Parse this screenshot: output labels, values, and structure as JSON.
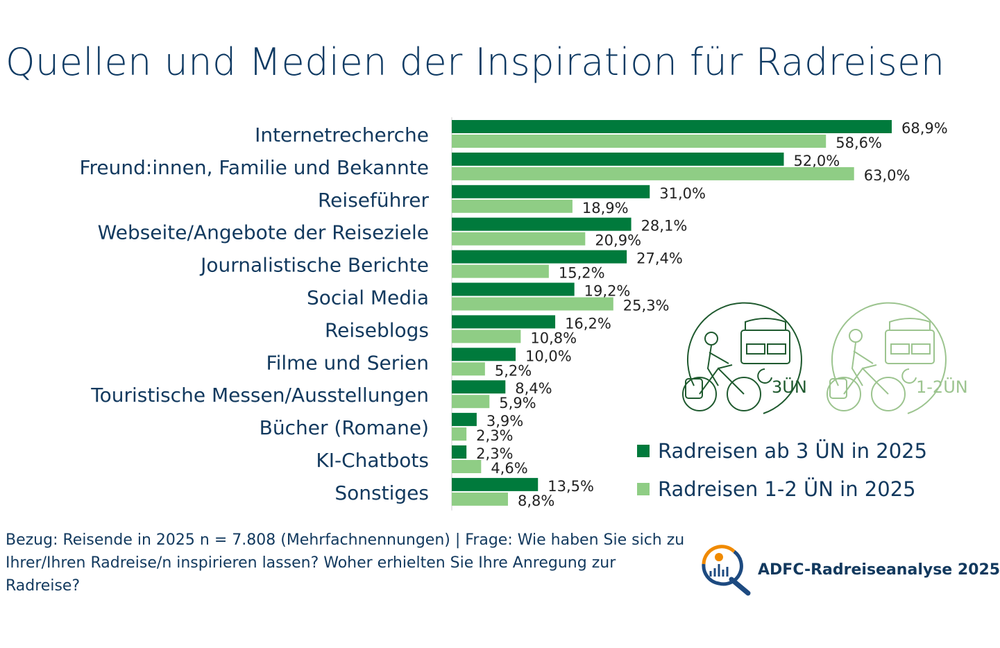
{
  "chart_data": {
    "type": "bar",
    "orientation": "horizontal",
    "title": "Quellen und Medien der Inspiration für Radreisen",
    "categories": [
      "Internetrecherche",
      "Freund:innen, Familie und Bekannte",
      "Reiseführer",
      "Webseite/Angebote der Reiseziele",
      "Journalistische Berichte",
      "Social Media",
      "Reiseblogs",
      "Filme und Serien",
      "Touristische Messen/Ausstellungen",
      "Bücher (Romane)",
      "KI-Chatbots",
      "Sonstiges"
    ],
    "series": [
      {
        "name": "Radreisen ab 3 ÜN in 2025",
        "color": "#007a3c",
        "values": [
          68.9,
          52.0,
          31.0,
          28.1,
          27.4,
          19.2,
          16.2,
          10.0,
          8.4,
          3.9,
          2.3,
          13.5
        ],
        "labels": [
          "68,9%",
          "52,0%",
          "31,0%",
          "28,1%",
          "27,4%",
          "19,2%",
          "16,2%",
          "10,0%",
          "8,4%",
          "3,9%",
          "2,3%",
          "13,5%"
        ]
      },
      {
        "name": "Radreisen 1-2 ÜN in 2025",
        "color": "#8fcd85",
        "values": [
          58.6,
          63.0,
          18.9,
          20.9,
          15.2,
          25.3,
          10.8,
          5.2,
          5.9,
          2.3,
          4.6,
          8.8
        ],
        "labels": [
          "58,6%",
          "63,0%",
          "18,9%",
          "20,9%",
          "15,2%",
          "25,3%",
          "10,8%",
          "5,2%",
          "5,9%",
          "2,3%",
          "4,6%",
          "8,8%"
        ]
      }
    ],
    "unit": "%",
    "xlim": [
      0,
      70
    ],
    "grid": false,
    "legend_placement": "right"
  },
  "icons": {
    "icon_3un": {
      "name": "cyclist-bed-icon",
      "label": "3ÜN",
      "color": "#1f5a2f"
    },
    "icon_12un": {
      "name": "cyclist-bed-icon",
      "label": "1-2ÜN",
      "color": "#9cc48f"
    }
  },
  "footnote": "Bezug: Reisende in 2025 n = 7.808 (Mehrfachnennungen) | Frage: Wie haben Sie sich zu Ihrer/Ihren Radreise/n inspirieren lassen? Woher erhielten Sie Ihre Anregung zur Radreise?",
  "logo": {
    "text": "ADFC-Radreiseanalyse 2025",
    "colors": [
      "#f08a00",
      "#1d4a80"
    ]
  }
}
